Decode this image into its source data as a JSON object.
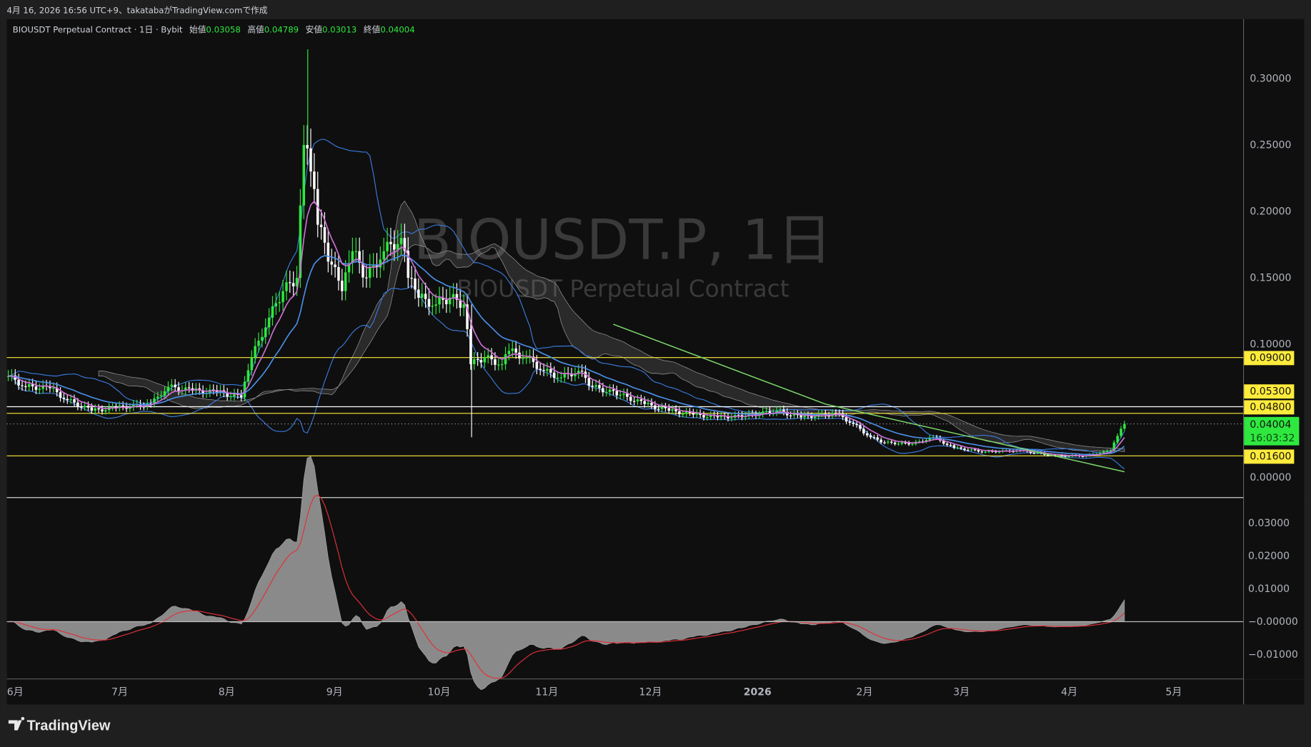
{
  "caption": "4月 16, 2026 16:56 UTC+9、takatabaがTradingView.comで作成",
  "legend": {
    "symbol_desc": "BIOUSDT Perpetual Contract · 1日 · Bybit",
    "open_label": "始値",
    "open": "0.03058",
    "high_label": "高値",
    "high": "0.04789",
    "low_label": "安値",
    "low": "0.03013",
    "close_label": "終値",
    "close": "0.04004"
  },
  "watermark": {
    "title": "BIOUSDT.P, 1日",
    "subtitle": "BIOUSDT Perpetual Contract"
  },
  "brand": "TradingView",
  "colors": {
    "up": "#2ee83f",
    "down": "#ffffff",
    "ma_fast": "#d070d8",
    "ma_slow": "#4a90e8",
    "bands": "#3a78d8",
    "trend": "#7cd66a",
    "level": "#ffeb3b",
    "signal": "#e0303a",
    "hist": "#8a8a8a"
  },
  "chart_data": [
    {
      "type": "candlestick",
      "pane": "price",
      "ylim": [
        -0.015,
        0.33
      ],
      "y_ticks": [
        "0.30000",
        "0.25000",
        "0.20000",
        "0.15000",
        "0.10000",
        "0.00000"
      ],
      "x_ticks": [
        "6月",
        "7月",
        "8月",
        "9月",
        "10月",
        "11月",
        "12月",
        "2026",
        "2月",
        "3月",
        "4月",
        "5月"
      ],
      "closes": [
        [
          "2025-05-30",
          0.076
        ],
        [
          "2025-06-04",
          0.068
        ],
        [
          "2025-06-11",
          0.067
        ],
        [
          "2025-06-16",
          0.058
        ],
        [
          "2025-06-23",
          0.05
        ],
        [
          "2025-06-30",
          0.052
        ],
        [
          "2025-07-10",
          0.055
        ],
        [
          "2025-07-15",
          0.068
        ],
        [
          "2025-07-22",
          0.065
        ],
        [
          "2025-07-29",
          0.064
        ],
        [
          "2025-08-05",
          0.06
        ],
        [
          "2025-08-08",
          0.09
        ],
        [
          "2025-08-13",
          0.12
        ],
        [
          "2025-08-17",
          0.14
        ],
        [
          "2025-08-21",
          0.15
        ],
        [
          "2025-08-23",
          0.25
        ],
        [
          "2025-08-25",
          0.23
        ],
        [
          "2025-08-27",
          0.19
        ],
        [
          "2025-08-31",
          0.16
        ],
        [
          "2025-09-03",
          0.14
        ],
        [
          "2025-09-06",
          0.17
        ],
        [
          "2025-09-10",
          0.15
        ],
        [
          "2025-09-15",
          0.17
        ],
        [
          "2025-09-20",
          0.18
        ],
        [
          "2025-09-22",
          0.15
        ],
        [
          "2025-09-25",
          0.135
        ],
        [
          "2025-09-30",
          0.13
        ],
        [
          "2025-10-04",
          0.135
        ],
        [
          "2025-10-08",
          0.13
        ],
        [
          "2025-10-10",
          0.085
        ],
        [
          "2025-10-14",
          0.09
        ],
        [
          "2025-10-19",
          0.085
        ],
        [
          "2025-10-21",
          0.095
        ],
        [
          "2025-10-26",
          0.09
        ],
        [
          "2025-10-31",
          0.08
        ],
        [
          "2025-11-05",
          0.075
        ],
        [
          "2025-11-10",
          0.08
        ],
        [
          "2025-11-14",
          0.068
        ],
        [
          "2025-11-22",
          0.062
        ],
        [
          "2025-11-29",
          0.055
        ],
        [
          "2025-12-06",
          0.05
        ],
        [
          "2025-12-13",
          0.047
        ],
        [
          "2025-12-20",
          0.045
        ],
        [
          "2025-12-28",
          0.046
        ],
        [
          "2026-01-06",
          0.05
        ],
        [
          "2026-01-13",
          0.045
        ],
        [
          "2026-01-23",
          0.048
        ],
        [
          "2026-01-28",
          0.04
        ],
        [
          "2026-02-02",
          0.03
        ],
        [
          "2026-02-06",
          0.026
        ],
        [
          "2026-02-14",
          0.025
        ],
        [
          "2026-02-20",
          0.03
        ],
        [
          "2026-02-26",
          0.022
        ],
        [
          "2026-03-07",
          0.019
        ],
        [
          "2026-03-17",
          0.02
        ],
        [
          "2026-03-27",
          0.016
        ],
        [
          "2026-04-05",
          0.016
        ],
        [
          "2026-04-12",
          0.02
        ],
        [
          "2026-04-14",
          0.031
        ],
        [
          "2026-04-16",
          0.04004
        ]
      ],
      "trendline": [
        [
          "2025-11-20",
          0.115
        ],
        [
          "2026-01-20",
          0.055
        ],
        [
          "2026-04-16",
          0.004
        ]
      ],
      "levels": [
        {
          "value": "0.09000",
          "color": "#ffeb3b"
        },
        {
          "value": "0.05300",
          "color": "#ffffff"
        },
        {
          "value": "0.04800",
          "color": "#ffeb3b"
        },
        {
          "value": "0.01600",
          "color": "#ffeb3b"
        }
      ],
      "last_price": {
        "value": "0.04004",
        "countdown": "16:03:32"
      }
    },
    {
      "type": "area+line",
      "pane": "oscillator",
      "ylim": [
        -0.017,
        0.035
      ],
      "y_ticks": [
        "0.03000",
        "0.02000",
        "0.01000",
        "−0.00000",
        "−0.01000"
      ]
    }
  ]
}
